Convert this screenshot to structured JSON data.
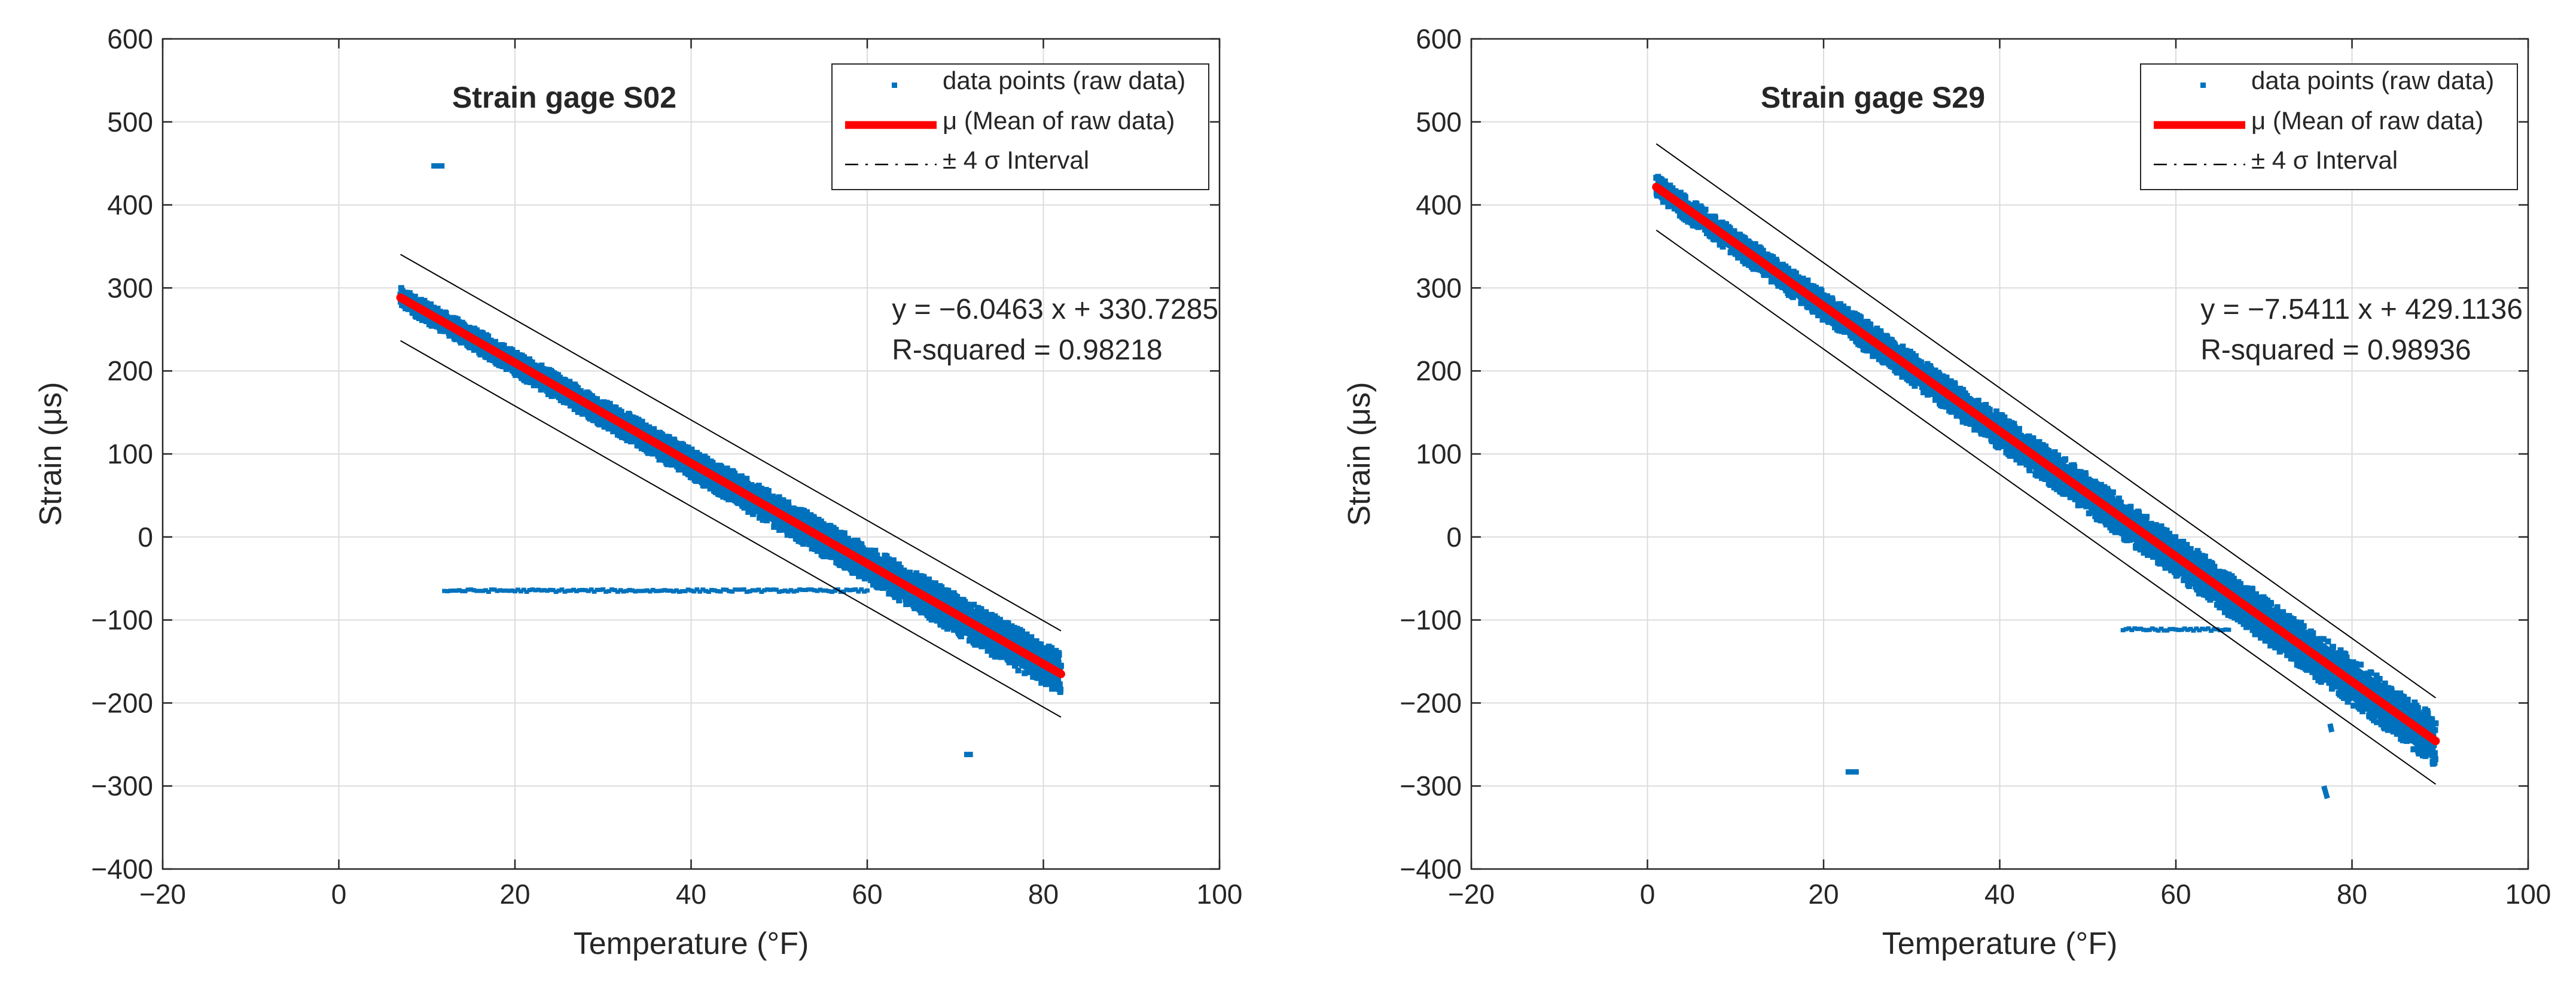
{
  "chart_data": [
    {
      "type": "scatter",
      "title": "Strain gage S02",
      "xlabel": "Temperature (°F)",
      "ylabel": "Strain (μs)",
      "xlim": [
        -20,
        100
      ],
      "ylim": [
        -400,
        600
      ],
      "xticks": [
        -20,
        0,
        20,
        40,
        60,
        80,
        100
      ],
      "yticks": [
        -400,
        -300,
        -200,
        -100,
        0,
        100,
        200,
        300,
        400,
        500,
        600
      ],
      "xtick_labels": [
        "−20",
        "0",
        "20",
        "40",
        "60",
        "80",
        "100"
      ],
      "ytick_labels": [
        "−400",
        "−300",
        "−200",
        "−100",
        "0",
        "100",
        "200",
        "300",
        "400",
        "500",
        "600"
      ],
      "grid": true,
      "legend": {
        "position": "top-right",
        "entries": [
          {
            "label": "data points (raw data)",
            "color": "#0072BD",
            "style": "marker"
          },
          {
            "label": "μ (Mean of raw data)",
            "color": "#FF0000",
            "style": "thick-line"
          },
          {
            "label": "± 4 σ Interval",
            "color": "#000000",
            "style": "dash-dot"
          }
        ]
      },
      "equation": "y = −6.0463 x + 330.7285",
      "r_squared_text": "R-squared = 0.98218",
      "fit": {
        "slope": -6.0463,
        "intercept": 330.7285,
        "x_range": [
          7,
          82
        ],
        "band_offset": 52
      },
      "scatter_band": {
        "x_range": [
          7,
          82
        ],
        "half_width_start": 12,
        "half_width_end": 26
      },
      "outliers": [
        {
          "x": [
            71,
            72
          ],
          "y": [
            -262,
            -262
          ]
        },
        {
          "x": [
            10.5,
            12
          ],
          "y": [
            447,
            447
          ]
        }
      ],
      "flat_segments": [
        {
          "x0": 12,
          "x1": 60,
          "y": -65
        }
      ],
      "colors": {
        "scatter": "#0072BD",
        "mean": "#FF0000",
        "interval": "#000000"
      }
    },
    {
      "type": "scatter",
      "title": "Strain gage S29",
      "xlabel": "Temperature (°F)",
      "ylabel": "Strain (μs)",
      "xlim": [
        -20,
        100
      ],
      "ylim": [
        -400,
        600
      ],
      "xticks": [
        -20,
        0,
        20,
        40,
        60,
        80,
        100
      ],
      "yticks": [
        -400,
        -300,
        -200,
        -100,
        0,
        100,
        200,
        300,
        400,
        500,
        600
      ],
      "xtick_labels": [
        "−20",
        "0",
        "20",
        "40",
        "60",
        "80",
        "100"
      ],
      "ytick_labels": [
        "−400",
        "−300",
        "−200",
        "−100",
        "0",
        "100",
        "200",
        "300",
        "400",
        "500",
        "600"
      ],
      "grid": true,
      "legend": {
        "position": "top-right",
        "entries": [
          {
            "label": "data points (raw data)",
            "color": "#0072BD",
            "style": "marker"
          },
          {
            "label": "μ (Mean of raw data)",
            "color": "#FF0000",
            "style": "thick-line"
          },
          {
            "label": "± 4 σ Interval",
            "color": "#000000",
            "style": "dash-dot"
          }
        ]
      },
      "equation": "y = −7.5411 x + 429.1136",
      "r_squared_text": "R-squared = 0.98936",
      "fit": {
        "slope": -7.5411,
        "intercept": 429.1136,
        "x_range": [
          1,
          89.5
        ],
        "band_offset": 52
      },
      "scatter_band": {
        "x_range": [
          1,
          89.5
        ],
        "half_width_start": 14,
        "half_width_end": 30
      },
      "outliers": [
        {
          "x": [
            22.5,
            24
          ],
          "y": [
            -283,
            -283
          ]
        },
        {
          "x": [
            76.8,
            77.2
          ],
          "y": [
            -300,
            -315
          ]
        },
        {
          "x": [
            77.5,
            77.7
          ],
          "y": [
            -225,
            -235
          ]
        }
      ],
      "flat_segments": [
        {
          "x0": 54,
          "x1": 66,
          "y": -112
        }
      ],
      "colors": {
        "scatter": "#0072BD",
        "mean": "#FF0000",
        "interval": "#000000"
      }
    }
  ]
}
